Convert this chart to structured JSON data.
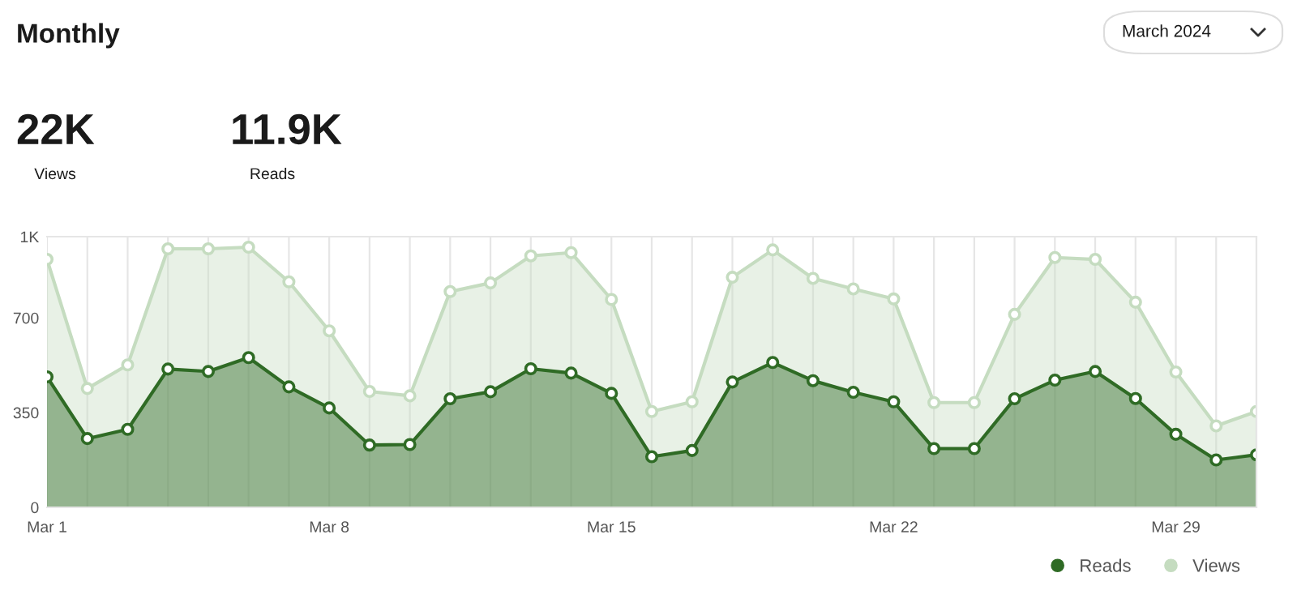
{
  "chart_data": {
    "type": "area",
    "title": "Monthly",
    "annotations": [
      "22K",
      "Views",
      "11.9K",
      "Reads",
      "March 2024"
    ],
    "x": [
      "2024-03-01",
      "2024-03-02",
      "2024-03-03",
      "2024-03-04",
      "2024-03-05",
      "2024-03-06",
      "2024-03-07",
      "2024-03-08",
      "2024-03-09",
      "2024-03-10",
      "2024-03-11",
      "2024-03-12",
      "2024-03-13",
      "2024-03-14",
      "2024-03-15",
      "2024-03-16",
      "2024-03-17",
      "2024-03-18",
      "2024-03-19",
      "2024-03-20",
      "2024-03-21",
      "2024-03-22",
      "2024-03-23",
      "2024-03-24",
      "2024-03-25",
      "2024-03-26",
      "2024-03-27",
      "2024-03-28",
      "2024-03-29",
      "2024-03-30",
      "2024-03-31"
    ],
    "series": [
      {
        "name": "Views",
        "color": "#c5dcc0",
        "values": [
          916,
          439,
          526,
          955,
          955,
          961,
          833,
          652,
          428,
          412,
          797,
          829,
          929,
          941,
          768,
          354,
          390,
          850,
          951,
          846,
          807,
          770,
          387,
          387,
          713,
          923,
          916,
          758,
          500,
          301,
          354
        ]
      },
      {
        "name": "Reads",
        "color": "#2f6b25",
        "values": [
          482,
          254,
          288,
          511,
          502,
          553,
          445,
          367,
          230,
          232,
          401,
          427,
          512,
          496,
          421,
          187,
          210,
          463,
          535,
          468,
          425,
          390,
          217,
          217,
          401,
          470,
          502,
          402,
          270,
          175,
          194
        ]
      }
    ],
    "xlim": [
      "2024-03-01",
      "2024-03-31"
    ],
    "xticks": [
      {
        "value": "2024-03-01",
        "label": "Mar 1"
      },
      {
        "value": "2024-03-02",
        "label": null
      },
      {
        "value": "2024-03-03",
        "label": null
      },
      {
        "value": "2024-03-04",
        "label": null
      },
      {
        "value": "2024-03-05",
        "label": null
      },
      {
        "value": "2024-03-06",
        "label": null
      },
      {
        "value": "2024-03-07",
        "label": null
      },
      {
        "value": "2024-03-08",
        "label": "Mar 8"
      },
      {
        "value": "2024-03-09",
        "label": null
      },
      {
        "value": "2024-03-10",
        "label": null
      },
      {
        "value": "2024-03-11",
        "label": null
      },
      {
        "value": "2024-03-12",
        "label": null
      },
      {
        "value": "2024-03-13",
        "label": null
      },
      {
        "value": "2024-03-14",
        "label": null
      },
      {
        "value": "2024-03-15",
        "label": "Mar 15"
      },
      {
        "value": "2024-03-16",
        "label": null
      },
      {
        "value": "2024-03-17",
        "label": null
      },
      {
        "value": "2024-03-18",
        "label": null
      },
      {
        "value": "2024-03-19",
        "label": null
      },
      {
        "value": "2024-03-20",
        "label": null
      },
      {
        "value": "2024-03-21",
        "label": null
      },
      {
        "value": "2024-03-22",
        "label": "Mar 22"
      },
      {
        "value": "2024-03-23",
        "label": null
      },
      {
        "value": "2024-03-24",
        "label": null
      },
      {
        "value": "2024-03-25",
        "label": null
      },
      {
        "value": "2024-03-26",
        "label": null
      },
      {
        "value": "2024-03-27",
        "label": null
      },
      {
        "value": "2024-03-28",
        "label": null
      },
      {
        "value": "2024-03-29",
        "label": "Mar 29"
      },
      {
        "value": "2024-03-30",
        "label": null
      },
      {
        "value": "2024-03-31",
        "label": null
      }
    ],
    "ylim": [
      0,
      1000
    ],
    "yticks": [
      0,
      350,
      700,
      {
        "value": 1000,
        "label": "1K"
      }
    ],
    "grid": "x",
    "legend": "bottom right",
    "marker": "circle",
    "line_style": "solid"
  }
}
